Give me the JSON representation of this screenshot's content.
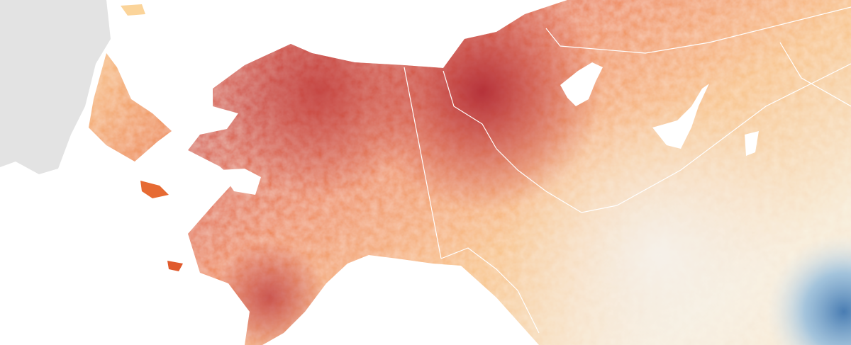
{
  "map": {
    "colors": {
      "ocean": "#ffffff",
      "no_data_land": "#e3e3e3",
      "anomaly_very_hot": "#b3141c",
      "anomaly_hot": "#e0502a",
      "anomaly_warm": "#f59a4e",
      "anomaly_mild": "#fbd49a",
      "anomaly_neutral": "#f4f2ee",
      "anomaly_cool": "#9cc3e0",
      "anomaly_cold": "#3a78b2",
      "boundary_lines": "#ffffff"
    }
  }
}
